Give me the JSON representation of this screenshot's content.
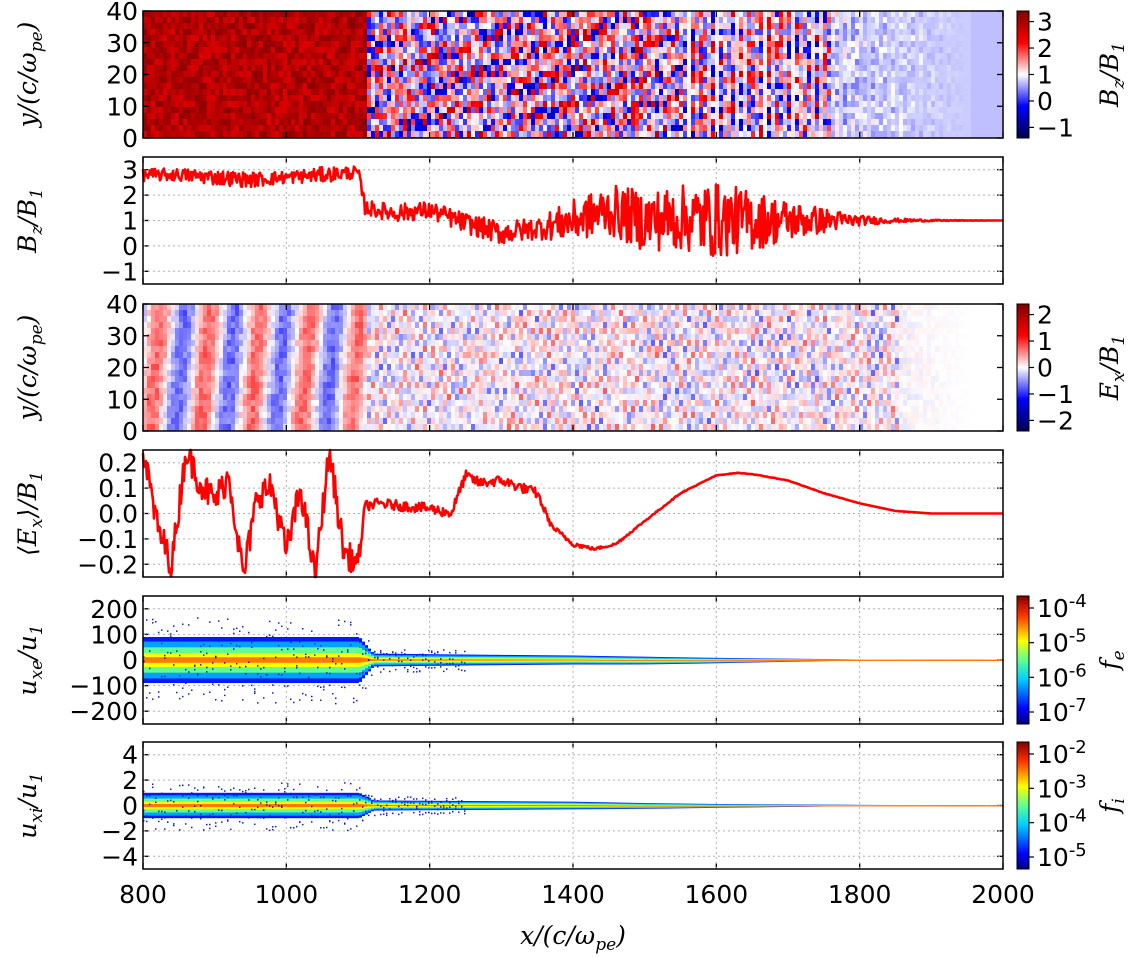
{
  "figure": {
    "xlabel": "x/(c/ω_pe)",
    "xlim": [
      800,
      2000
    ],
    "xticks": [
      "800",
      "1000",
      "1200",
      "1400",
      "1600",
      "1800",
      "2000"
    ]
  },
  "colors": {
    "line_red": "#ff0000",
    "seismic_low": "#00008b",
    "seismic_mid": "#ffffff",
    "seismic_high": "#b00000",
    "jet": [
      "#000080",
      "#0000ff",
      "#00c0ff",
      "#40ffb0",
      "#ffff00",
      "#ff8000",
      "#d00000",
      "#800000"
    ]
  },
  "chart_data": [
    {
      "panel": "Bz-map",
      "type": "heatmap",
      "ylabel": "y/(c/ω_pe)",
      "ylim": [
        0,
        40
      ],
      "yticks": [
        "0",
        "10",
        "20",
        "30",
        "40"
      ],
      "colorbar": {
        "label": "B_z/B_1",
        "range": [
          -1.4,
          3.4
        ],
        "ticks": [
          "−1",
          "0",
          "1",
          "2",
          "3"
        ],
        "colormap": "seismic"
      },
      "description_regions": [
        {
          "x": [
            800,
            1110
          ],
          "level": 3.0
        },
        {
          "x": [
            1110,
            1550
          ],
          "level": "mixed ±2"
        },
        {
          "x": [
            1550,
            1750
          ],
          "level": "strong ±3 striped"
        },
        {
          "x": [
            1750,
            1950
          ],
          "level": "fading to 1"
        }
      ]
    },
    {
      "panel": "Bz-profile",
      "type": "line",
      "ylabel": "B_z/B_1",
      "ylim": [
        -1.5,
        3.5
      ],
      "yticks": [
        "−1",
        "0",
        "1",
        "2",
        "3"
      ],
      "grid": true,
      "series": [
        {
          "x": [
            800,
            850,
            900,
            950,
            1000,
            1050,
            1100,
            1110,
            1150,
            1200,
            1250,
            1300,
            1350,
            1400,
            1450,
            1500,
            1550,
            1600,
            1650,
            1700,
            1750,
            1800,
            1850,
            1900,
            1950,
            2000
          ],
          "values": [
            2.8,
            2.8,
            2.7,
            2.6,
            2.7,
            2.8,
            2.9,
            1.5,
            1.3,
            1.4,
            0.9,
            0.5,
            0.7,
            1.0,
            1.4,
            1.0,
            1.1,
            1.0,
            1.0,
            1.0,
            1.0,
            1.0,
            1.0,
            1.0,
            1.0,
            1.0
          ],
          "noise": [
            0.25,
            0.25,
            0.3,
            0.3,
            0.25,
            0.3,
            0.25,
            0.3,
            0.35,
            0.35,
            0.4,
            0.45,
            0.45,
            0.8,
            1.0,
            1.2,
            1.3,
            1.5,
            1.2,
            0.8,
            0.5,
            0.2,
            0.08,
            0.03,
            0.01,
            0.0
          ]
        }
      ]
    },
    {
      "panel": "Ex-map",
      "type": "heatmap",
      "ylabel": "y/(c/ω_pe)",
      "ylim": [
        0,
        40
      ],
      "yticks": [
        "0",
        "10",
        "20",
        "30",
        "40"
      ],
      "colorbar": {
        "label": "E_x/B_1",
        "range": [
          -2.4,
          2.4
        ],
        "ticks": [
          "−2",
          "−1",
          "0",
          "1",
          "2"
        ],
        "colormap": "seismic"
      }
    },
    {
      "panel": "Ex-profile",
      "type": "line",
      "ylabel": "⟨E_x⟩/B_1",
      "ylim": [
        -0.25,
        0.25
      ],
      "yticks": [
        "−0.2",
        "−0.1",
        "0.0",
        "0.1",
        "0.2"
      ],
      "grid": true,
      "series": [
        {
          "x": [
            800,
            820,
            840,
            860,
            880,
            900,
            920,
            940,
            960,
            980,
            1000,
            1020,
            1040,
            1060,
            1080,
            1100,
            1110,
            1130,
            1160,
            1200,
            1230,
            1250,
            1270,
            1300,
            1330,
            1350,
            1370,
            1400,
            1430,
            1460,
            1500,
            1550,
            1600,
            1630,
            1650,
            1700,
            1750,
            1800,
            1850,
            1900,
            2000
          ],
          "values": [
            0.25,
            -0.05,
            -0.2,
            0.25,
            0.12,
            0.05,
            0.15,
            -0.25,
            0.08,
            0.1,
            -0.15,
            0.1,
            -0.25,
            0.25,
            -0.15,
            -0.2,
            0.03,
            0.04,
            0.03,
            0.02,
            0.0,
            0.15,
            0.12,
            0.13,
            0.1,
            0.08,
            -0.05,
            -0.12,
            -0.14,
            -0.12,
            -0.03,
            0.08,
            0.15,
            0.16,
            0.155,
            0.13,
            0.08,
            0.04,
            0.01,
            0.0,
            0.0
          ],
          "noise": [
            0.06,
            0.06,
            0.06,
            0.06,
            0.06,
            0.06,
            0.06,
            0.06,
            0.06,
            0.06,
            0.06,
            0.06,
            0.06,
            0.06,
            0.06,
            0.05,
            0.02,
            0.02,
            0.02,
            0.02,
            0.02,
            0.02,
            0.02,
            0.02,
            0.02,
            0.02,
            0.01,
            0.01,
            0.005,
            0.005,
            0.003,
            0.002,
            0.001,
            0.001,
            0.001,
            0.001,
            0.001,
            0.0,
            0.0,
            0.0,
            0.0
          ]
        }
      ]
    },
    {
      "panel": "electron-phase",
      "type": "heatmap",
      "ylabel": "u_xe/u_1",
      "ylim": [
        -250,
        250
      ],
      "yticks": [
        "−200",
        "−100",
        "0",
        "100",
        "200"
      ],
      "grid": true,
      "colorbar": {
        "label": "f_e",
        "ticks": [
          "10-4",
          "10-5",
          "10-6",
          "10-7"
        ],
        "colormap": "jet",
        "scale": "log"
      },
      "spread": [
        {
          "x": 800,
          "half_width": 90
        },
        {
          "x": 1100,
          "half_width": 90
        },
        {
          "x": 1120,
          "half_width": 25
        },
        {
          "x": 1300,
          "half_width": 20
        },
        {
          "x": 1500,
          "half_width": 15
        },
        {
          "x": 1700,
          "half_width": 6
        },
        {
          "x": 1800,
          "half_width": 2
        },
        {
          "x": 2000,
          "half_width": 0.5
        }
      ]
    },
    {
      "panel": "ion-phase",
      "type": "heatmap",
      "ylabel": "u_xi/u_1",
      "ylim": [
        -5,
        5
      ],
      "yticks": [
        "−4",
        "−2",
        "0",
        "2",
        "4"
      ],
      "grid": true,
      "colorbar": {
        "label": "f_i",
        "ticks": [
          "10-2",
          "10-3",
          "10-4",
          "10-5"
        ],
        "colormap": "jet",
        "scale": "log"
      },
      "spread": [
        {
          "x": 800,
          "half_width": 1.0
        },
        {
          "x": 1100,
          "half_width": 1.0
        },
        {
          "x": 1120,
          "half_width": 0.4
        },
        {
          "x": 1400,
          "half_width": 0.3
        },
        {
          "x": 1600,
          "half_width": 0.15
        },
        {
          "x": 1800,
          "half_width": 0.05
        },
        {
          "x": 2000,
          "half_width": 0.01
        }
      ]
    }
  ]
}
